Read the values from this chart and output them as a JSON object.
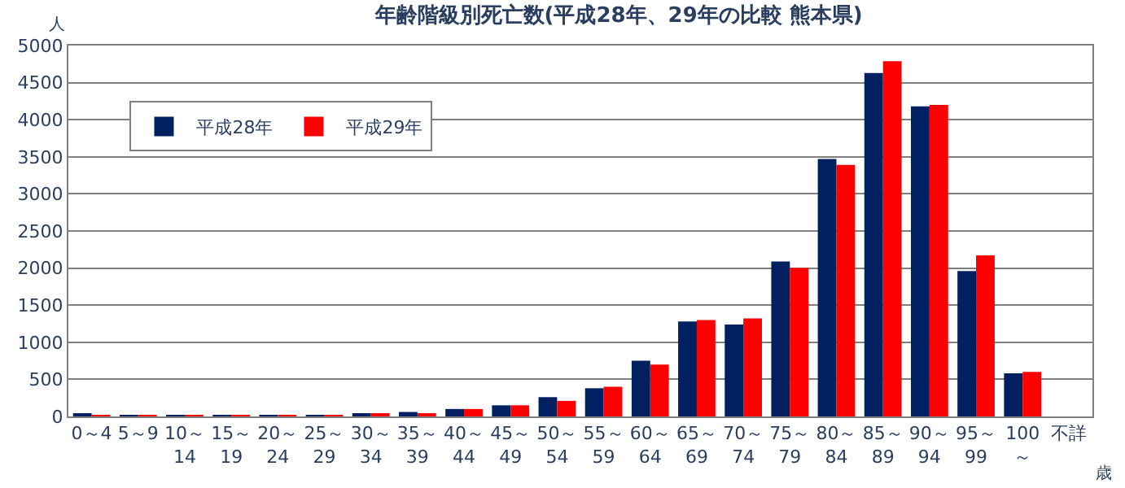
{
  "chart_data": {
    "type": "bar",
    "title": "年齢階級別死亡数(平成28年、29年の比較 熊本県)",
    "categories": [
      "0～4",
      "5～9",
      "10～\n14",
      "15～\n19",
      "20～\n24",
      "25～\n29",
      "30～\n34",
      "35～\n39",
      "40～\n44",
      "45～\n49",
      "50～\n54",
      "55～\n59",
      "60～\n64",
      "65～\n69",
      "70～\n74",
      "75～\n79",
      "80～\n84",
      "85～\n89",
      "90～\n94",
      "95～\n99",
      "100\n～",
      "不詳"
    ],
    "series": [
      {
        "name": "平成28年",
        "color": "#002060",
        "values": [
          40,
          20,
          20,
          20,
          20,
          20,
          40,
          60,
          100,
          150,
          260,
          380,
          750,
          1280,
          1240,
          2090,
          3470,
          4630,
          4180,
          1960,
          580,
          0
        ]
      },
      {
        "name": "平成29年",
        "color": "#ff0000",
        "values": [
          20,
          20,
          20,
          20,
          20,
          20,
          40,
          40,
          100,
          150,
          210,
          400,
          700,
          1300,
          1320,
          2000,
          3390,
          4790,
          4200,
          2170,
          600,
          0
        ]
      }
    ],
    "ylim": [
      0,
      5000
    ],
    "yticks": [
      0,
      500,
      1000,
      1500,
      2000,
      2500,
      3000,
      3500,
      4000,
      4500,
      5000
    ],
    "grid": "y",
    "legend": "top left",
    "annotations": [
      "人",
      "歳"
    ]
  }
}
